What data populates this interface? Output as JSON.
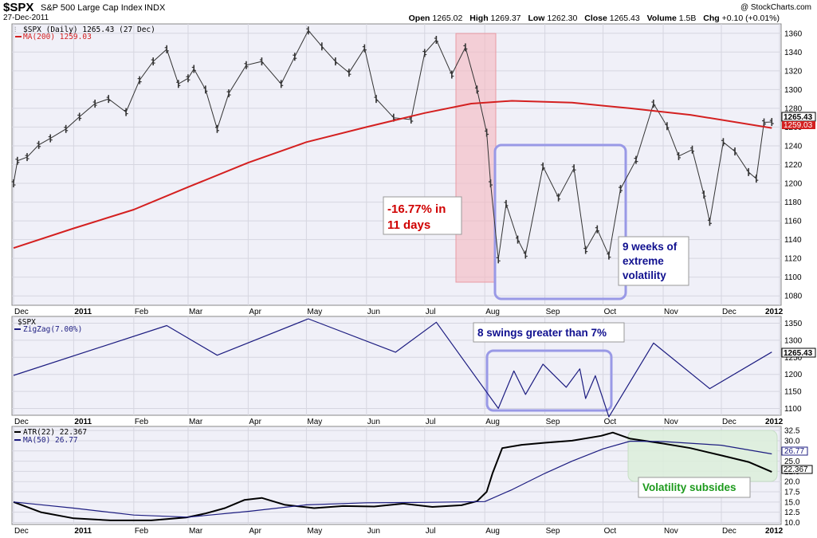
{
  "header": {
    "symbol": "$SPX",
    "name": "S&P 500 Large Cap Index",
    "exchange": "INDX",
    "date": "27-Dec-2011",
    "watermark": "@ StockCharts.com",
    "open_label": "Open",
    "open": "1265.02",
    "high_label": "High",
    "high": "1269.37",
    "low_label": "Low",
    "low": "1262.30",
    "close_label": "Close",
    "close": "1265.43",
    "volume_label": "Volume",
    "volume": "1.5B",
    "chg_label": "Chg",
    "chg": "+0.10 (+0.01%)"
  },
  "panels": {
    "price": {
      "legend_main": "$SPX (Daily) 1265.43 (27 Dec)",
      "legend_ma": "MA(200) 1259.03",
      "last_close_tag": "1265.43",
      "ma_tag": "1259.03"
    },
    "zigzag": {
      "legend_symbol": "$SPX",
      "legend_zz": "ZigZag(7.00%)",
      "last_tag": "1265.43"
    },
    "atr": {
      "legend_atr": "ATR(22) 22.367",
      "legend_ma": "MA(50) 26.77",
      "ma_tag": "26.77",
      "atr_tag": "22.367"
    }
  },
  "annotations": {
    "drop_line1": "-16.77% in",
    "drop_line2": "11 days",
    "vol_line1": "9 weeks of",
    "vol_line2": "extreme",
    "vol_line3": "volatility",
    "swings": "8 swings greater than 7%",
    "subsides": "Volatility subsides"
  },
  "colors": {
    "panel_bg": "#f0f0f8",
    "price_bar": "#333333",
    "ma200": "#d42020",
    "zigzag": "#1c1c80",
    "atr": "#000000",
    "atr_ma": "#1c1c80",
    "highlight_red": "#f5b8bf",
    "highlight_box": "#9999e6",
    "highlight_green": "#dceedb",
    "text_red": "#d00000",
    "text_blue": "#10108f",
    "text_green": "#1c9a1c"
  },
  "chart_data": [
    {
      "type": "line",
      "title": "$SPX (Daily)",
      "x_ticks": [
        "Dec",
        "2011",
        "Feb",
        "Mar",
        "Apr",
        "May",
        "Jun",
        "Jul",
        "Aug",
        "Sep",
        "Oct",
        "Nov",
        "Dec",
        "2012"
      ],
      "y_ticks": [
        1080,
        1100,
        1120,
        1140,
        1160,
        1180,
        1200,
        1220,
        1240,
        1260,
        1280,
        1300,
        1320,
        1340,
        1360
      ],
      "ylim": [
        1070,
        1370
      ],
      "x_range": [
        "2010-12-01",
        "2011-12-31"
      ],
      "series": [
        {
          "name": "$SPX",
          "style": "ohlc-bars",
          "points": [
            [
              "2010-12-01",
              1200
            ],
            [
              "2010-12-03",
              1224
            ],
            [
              "2010-12-08",
              1228
            ],
            [
              "2010-12-14",
              1241
            ],
            [
              "2010-12-20",
              1248
            ],
            [
              "2010-12-28",
              1258
            ],
            [
              "2011-01-04",
              1271
            ],
            [
              "2011-01-12",
              1285
            ],
            [
              "2011-01-19",
              1290
            ],
            [
              "2011-01-28",
              1276
            ],
            [
              "2011-02-04",
              1310
            ],
            [
              "2011-02-11",
              1330
            ],
            [
              "2011-02-18",
              1343
            ],
            [
              "2011-02-24",
              1306
            ],
            [
              "2011-03-01",
              1312
            ],
            [
              "2011-03-04",
              1322
            ],
            [
              "2011-03-10",
              1300
            ],
            [
              "2011-03-16",
              1258
            ],
            [
              "2011-03-22",
              1296
            ],
            [
              "2011-03-31",
              1326
            ],
            [
              "2011-04-08",
              1330
            ],
            [
              "2011-04-18",
              1306
            ],
            [
              "2011-04-25",
              1335
            ],
            [
              "2011-05-02",
              1363
            ],
            [
              "2011-05-09",
              1346
            ],
            [
              "2011-05-16",
              1330
            ],
            [
              "2011-05-23",
              1318
            ],
            [
              "2011-05-31",
              1344
            ],
            [
              "2011-06-06",
              1290
            ],
            [
              "2011-06-15",
              1270
            ],
            [
              "2011-06-24",
              1268
            ],
            [
              "2011-07-01",
              1339
            ],
            [
              "2011-07-07",
              1353
            ],
            [
              "2011-07-15",
              1316
            ],
            [
              "2011-07-22",
              1345
            ],
            [
              "2011-07-28",
              1300
            ],
            [
              "2011-08-02",
              1254
            ],
            [
              "2011-08-04",
              1200
            ],
            [
              "2011-08-08",
              1119
            ],
            [
              "2011-08-12",
              1178
            ],
            [
              "2011-08-18",
              1140
            ],
            [
              "2011-08-22",
              1124
            ],
            [
              "2011-08-31",
              1218
            ],
            [
              "2011-09-08",
              1185
            ],
            [
              "2011-09-16",
              1216
            ],
            [
              "2011-09-22",
              1129
            ],
            [
              "2011-09-28",
              1151
            ],
            [
              "2011-10-04",
              1123
            ],
            [
              "2011-10-10",
              1194
            ],
            [
              "2011-10-18",
              1225
            ],
            [
              "2011-10-27",
              1285
            ],
            [
              "2011-11-03",
              1261
            ],
            [
              "2011-11-09",
              1229
            ],
            [
              "2011-11-16",
              1236
            ],
            [
              "2011-11-22",
              1188
            ],
            [
              "2011-11-25",
              1159
            ],
            [
              "2011-12-02",
              1244
            ],
            [
              "2011-12-08",
              1234
            ],
            [
              "2011-12-15",
              1212
            ],
            [
              "2011-12-19",
              1205
            ],
            [
              "2011-12-23",
              1265
            ],
            [
              "2011-12-27",
              1265.43
            ]
          ]
        },
        {
          "name": "MA(200)",
          "points": [
            [
              "2010-12-01",
              1131
            ],
            [
              "2011-01-01",
              1152
            ],
            [
              "2011-02-01",
              1172
            ],
            [
              "2011-03-01",
              1196
            ],
            [
              "2011-04-01",
              1222
            ],
            [
              "2011-05-01",
              1244
            ],
            [
              "2011-06-01",
              1260
            ],
            [
              "2011-07-01",
              1275
            ],
            [
              "2011-07-25",
              1285
            ],
            [
              "2011-08-15",
              1288
            ],
            [
              "2011-09-15",
              1286
            ],
            [
              "2011-10-15",
              1280
            ],
            [
              "2011-11-15",
              1273
            ],
            [
              "2011-12-27",
              1259.03
            ]
          ]
        }
      ]
    },
    {
      "type": "line",
      "title": "$SPX",
      "x_ticks": [
        "Dec",
        "2011",
        "Feb",
        "Mar",
        "Apr",
        "May",
        "Jun",
        "Jul",
        "Aug",
        "Sep",
        "Oct",
        "Nov",
        "Dec",
        "2012"
      ],
      "y_ticks": [
        1100,
        1150,
        1200,
        1250,
        1300,
        1350
      ],
      "ylim": [
        1080,
        1370
      ],
      "series": [
        {
          "name": "ZigZag(7.00%)",
          "points": [
            [
              "2010-12-01",
              1197
            ],
            [
              "2011-02-18",
              1343
            ],
            [
              "2011-03-16",
              1256
            ],
            [
              "2011-05-02",
              1363
            ],
            [
              "2011-06-16",
              1265
            ],
            [
              "2011-07-07",
              1353
            ],
            [
              "2011-08-08",
              1100
            ],
            [
              "2011-08-16",
              1210
            ],
            [
              "2011-08-22",
              1141
            ],
            [
              "2011-08-31",
              1230
            ],
            [
              "2011-09-12",
              1162
            ],
            [
              "2011-09-19",
              1216
            ],
            [
              "2011-09-22",
              1129
            ],
            [
              "2011-09-27",
              1196
            ],
            [
              "2011-10-04",
              1075
            ],
            [
              "2011-10-27",
              1292
            ],
            [
              "2011-11-25",
              1158
            ],
            [
              "2011-12-27",
              1265.43
            ]
          ]
        }
      ]
    },
    {
      "type": "line",
      "title": "ATR(22)",
      "x_ticks": [
        "Dec",
        "2011",
        "Feb",
        "Mar",
        "Apr",
        "May",
        "Jun",
        "Jul",
        "Aug",
        "Sep",
        "Oct",
        "Nov",
        "Dec",
        "2012"
      ],
      "y_ticks": [
        10.0,
        12.5,
        15.0,
        17.5,
        20.0,
        22.5,
        25.0,
        27.5,
        30.0,
        32.5
      ],
      "ylim": [
        9.5,
        33.5
      ],
      "series": [
        {
          "name": "ATR(22)",
          "points": [
            [
              "2010-12-01",
              15.0
            ],
            [
              "2010-12-15",
              12.5
            ],
            [
              "2011-01-01",
              11.0
            ],
            [
              "2011-01-20",
              10.5
            ],
            [
              "2011-02-10",
              10.5
            ],
            [
              "2011-02-28",
              11.2
            ],
            [
              "2011-03-10",
              12.2
            ],
            [
              "2011-03-20",
              13.5
            ],
            [
              "2011-03-30",
              15.5
            ],
            [
              "2011-04-08",
              16.0
            ],
            [
              "2011-04-20",
              14.3
            ],
            [
              "2011-05-05",
              13.5
            ],
            [
              "2011-05-20",
              14.0
            ],
            [
              "2011-06-05",
              13.9
            ],
            [
              "2011-06-20",
              14.6
            ],
            [
              "2011-07-05",
              13.8
            ],
            [
              "2011-07-20",
              14.2
            ],
            [
              "2011-07-28",
              15.2
            ],
            [
              "2011-08-02",
              17.5
            ],
            [
              "2011-08-05",
              22.0
            ],
            [
              "2011-08-10",
              28.2
            ],
            [
              "2011-08-20",
              29.0
            ],
            [
              "2011-09-01",
              29.5
            ],
            [
              "2011-09-15",
              30.0
            ],
            [
              "2011-09-30",
              31.2
            ],
            [
              "2011-10-06",
              32.0
            ],
            [
              "2011-10-15",
              30.5
            ],
            [
              "2011-11-01",
              29.3
            ],
            [
              "2011-11-15",
              28.2
            ],
            [
              "2011-12-01",
              26.4
            ],
            [
              "2011-12-15",
              24.8
            ],
            [
              "2011-12-27",
              22.367
            ]
          ]
        },
        {
          "name": "MA(50)",
          "points": [
            [
              "2010-12-01",
              15.0
            ],
            [
              "2011-01-01",
              13.5
            ],
            [
              "2011-02-01",
              11.8
            ],
            [
              "2011-03-01",
              11.3
            ],
            [
              "2011-04-01",
              12.7
            ],
            [
              "2011-05-01",
              14.3
            ],
            [
              "2011-06-01",
              14.8
            ],
            [
              "2011-07-01",
              14.9
            ],
            [
              "2011-08-01",
              15.1
            ],
            [
              "2011-08-15",
              18.0
            ],
            [
              "2011-09-01",
              22.0
            ],
            [
              "2011-09-15",
              25.0
            ],
            [
              "2011-10-01",
              28.0
            ],
            [
              "2011-10-15",
              29.9
            ],
            [
              "2011-11-01",
              29.8
            ],
            [
              "2011-12-01",
              28.9
            ],
            [
              "2011-12-27",
              26.77
            ]
          ]
        }
      ]
    }
  ]
}
